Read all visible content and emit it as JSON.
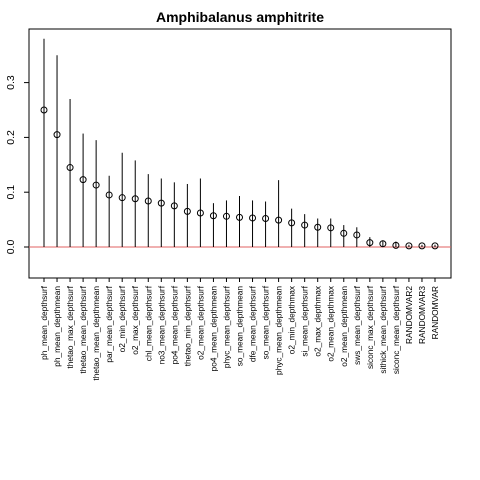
{
  "chart_data": {
    "type": "scatter",
    "title": "Amphibalanus amphitrite",
    "xlabel": "",
    "ylabel": "",
    "ylim": [
      -0.055,
      0.39
    ],
    "yticks": [
      0.0,
      0.1,
      0.2,
      0.3
    ],
    "ytick_labels": [
      "0.0",
      "0.1",
      "0.2",
      "0.3"
    ],
    "reference_line": 0.0,
    "grid": false,
    "colors": {
      "points": "#000000",
      "whiskers": "#000000",
      "reference_line": "#e06060",
      "frame": "#000000"
    },
    "categories": [
      "ph_mean_depthsurf",
      "ph_mean_depthmean",
      "thetao_max_depthsurf",
      "thetao_mean_depthsurf",
      "thetao_mean_depthmean",
      "par_mean_depthsurf",
      "o2_min_depthsurf",
      "o2_max_depthsurf",
      "chl_mean_depthsurf",
      "no3_mean_depthsurf",
      "po4_mean_depthsurf",
      "thetao_min_depthsurf",
      "o2_mean_depthsurf",
      "po4_mean_depthmean",
      "phyc_mean_depthsurf",
      "so_mean_depthmean",
      "dfe_mean_depthsurf",
      "so_mean_depthsurf",
      "phyc_mean_depthmean",
      "o2_min_depthmax",
      "si_mean_depthsurf",
      "o2_max_depthmax",
      "o2_mean_depthmax",
      "o2_mean_depthmean",
      "sws_mean_depthsurf",
      "siconc_max_depthsurf",
      "sithick_mean_depthsurf",
      "siconc_mean_depthsurf",
      "RANDOMVAR2",
      "RANDOMVAR3",
      "RANDOMVAR"
    ],
    "values": [
      0.25,
      0.205,
      0.145,
      0.123,
      0.113,
      0.095,
      0.09,
      0.088,
      0.084,
      0.08,
      0.075,
      0.065,
      0.062,
      0.057,
      0.056,
      0.054,
      0.053,
      0.052,
      0.049,
      0.044,
      0.04,
      0.036,
      0.035,
      0.025,
      0.022,
      0.008,
      0.006,
      0.003,
      0.002,
      0.002,
      0.002
    ],
    "upper": [
      0.38,
      0.35,
      0.27,
      0.207,
      0.195,
      0.13,
      0.172,
      0.158,
      0.133,
      0.125,
      0.118,
      0.115,
      0.125,
      0.08,
      0.085,
      0.093,
      0.085,
      0.083,
      0.122,
      0.07,
      0.06,
      0.052,
      0.052,
      0.04,
      0.036,
      0.018,
      0.012,
      0.01,
      0.004,
      0.004,
      0.004
    ]
  }
}
